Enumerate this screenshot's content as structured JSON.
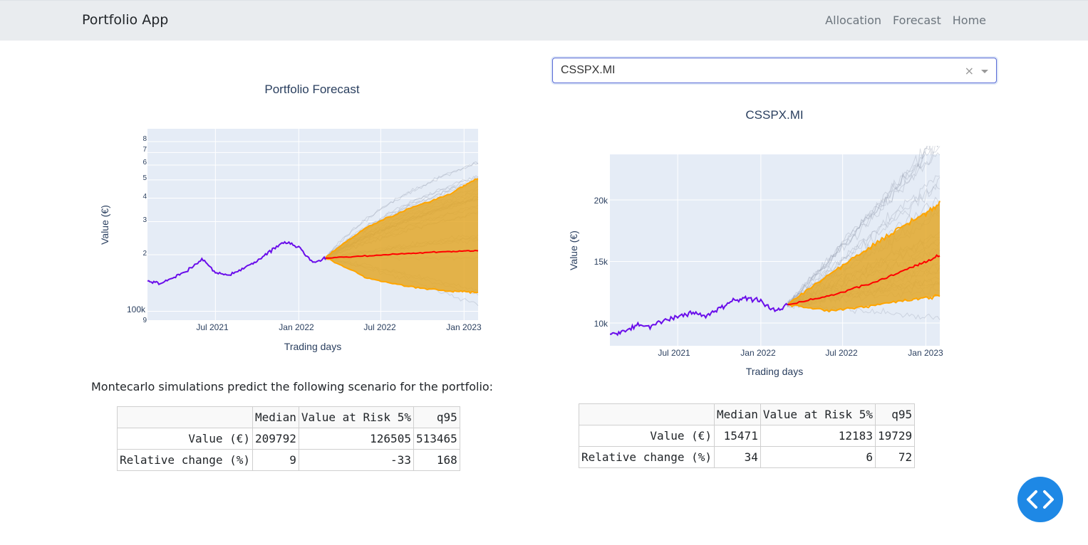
{
  "navbar": {
    "brand": "Portfolio App",
    "links": [
      "Allocation",
      "Forecast",
      "Home"
    ]
  },
  "left_chart": {
    "title": "Portfolio Forecast",
    "xlabel": "Trading days",
    "ylabel": "Value (€)",
    "x_ticks": [
      "Jul 2021",
      "Jan 2022",
      "Jul 2022",
      "Jan 2023"
    ],
    "y_ticks": [
      "8",
      "7",
      "6",
      "5",
      "4",
      "3",
      "2",
      "100k",
      "9"
    ]
  },
  "right_chart": {
    "title": "CSSPX.MI",
    "xlabel": "Trading days",
    "ylabel": "Value (€)",
    "x_ticks": [
      "Jul 2021",
      "Jan 2022",
      "Jul 2022",
      "Jan 2023"
    ],
    "y_ticks": [
      "20k",
      "15k",
      "10k"
    ]
  },
  "dropdown": {
    "value": "CSSPX.MI",
    "clear": "×"
  },
  "scenario_text": "Montecarlo simulations predict the following scenario for the portfolio:",
  "left_table": {
    "headers": [
      "",
      "Median",
      "Value at Risk 5%",
      "q95"
    ],
    "rows": [
      [
        "Value (€)",
        "209792",
        "126505",
        "513465"
      ],
      [
        "Relative change (%)",
        "9",
        "-33",
        "168"
      ]
    ]
  },
  "right_table": {
    "headers": [
      "",
      "Median",
      "Value at Risk 5%",
      "q95"
    ],
    "rows": [
      [
        "Value (€)",
        "15471",
        "12183",
        "19729"
      ],
      [
        "Relative change (%)",
        "34",
        "6",
        "72"
      ]
    ]
  },
  "colors": {
    "history": "#6a0dea",
    "median": "#ff0000",
    "quantiles": "#ffa500",
    "band": "#e3a82a",
    "plot_bg": "#e5ecf6",
    "fab": "#1e88e5"
  },
  "chart_data": [
    {
      "type": "line",
      "title": "Portfolio Forecast",
      "xlabel": "Trading days",
      "ylabel": "Value (€)",
      "y_scale": "log",
      "ylim": [
        90000,
        900000
      ],
      "series": [
        {
          "x": [
            "2021-02-01",
            "2021-03-01",
            "2021-04-01",
            "2021-05-01",
            "2021-06-01",
            "2021-07-01",
            "2021-08-01",
            "2021-09-01",
            "2021-10-01",
            "2021-11-01",
            "2021-12-01",
            "2022-01-01",
            "2022-02-01",
            "2022-03-01"
          ],
          "y": [
            145000,
            140000,
            152000,
            165000,
            190000,
            160000,
            155000,
            170000,
            185000,
            210000,
            235000,
            220000,
            180000,
            192000
          ]
        },
        {
          "x": [
            "2022-03-01",
            "2022-06-01",
            "2022-09-01",
            "2022-12-01",
            "2023-02-01"
          ],
          "y": [
            192000,
            197000,
            203000,
            208000,
            210000
          ]
        },
        {
          "x": [
            "2022-03-01",
            "2022-06-01",
            "2022-09-01",
            "2022-12-01",
            "2023-02-01"
          ],
          "y": [
            192000,
            150000,
            135000,
            128000,
            126000
          ]
        },
        {
          "x": [
            "2022-03-01",
            "2022-06-01",
            "2022-09-01",
            "2022-12-01",
            "2023-02-01"
          ],
          "y": [
            192000,
            280000,
            350000,
            420000,
            513000
          ]
        }
      ]
    },
    {
      "type": "line",
      "title": "CSSPX.MI",
      "xlabel": "Trading days",
      "ylabel": "Value (€)",
      "ylim": [
        8500,
        23500
      ],
      "series": [
        {
          "x": [
            "2021-02-01",
            "2021-03-01",
            "2021-04-01",
            "2021-05-01",
            "2021-06-01",
            "2021-07-01",
            "2021-08-01",
            "2021-09-01",
            "2021-10-01",
            "2021-11-01",
            "2021-12-01",
            "2022-01-01",
            "2022-02-01",
            "2022-03-01"
          ],
          "y": [
            9100,
            9300,
            9800,
            9700,
            10200,
            10500,
            10800,
            10600,
            11200,
            11800,
            12000,
            11800,
            10900,
            11500
          ]
        },
        {
          "x": [
            "2022-03-01",
            "2022-06-01",
            "2022-09-01",
            "2022-12-01",
            "2023-02-01"
          ],
          "y": [
            11500,
            12200,
            13200,
            14500,
            15500
          ]
        },
        {
          "x": [
            "2022-03-01",
            "2022-06-01",
            "2022-09-01",
            "2022-12-01",
            "2023-02-01"
          ],
          "y": [
            11500,
            11000,
            11400,
            11900,
            12200
          ]
        },
        {
          "x": [
            "2022-03-01",
            "2022-06-01",
            "2022-09-01",
            "2022-12-01",
            "2023-02-01"
          ],
          "y": [
            11500,
            14000,
            16200,
            18300,
            19700
          ]
        }
      ]
    }
  ]
}
